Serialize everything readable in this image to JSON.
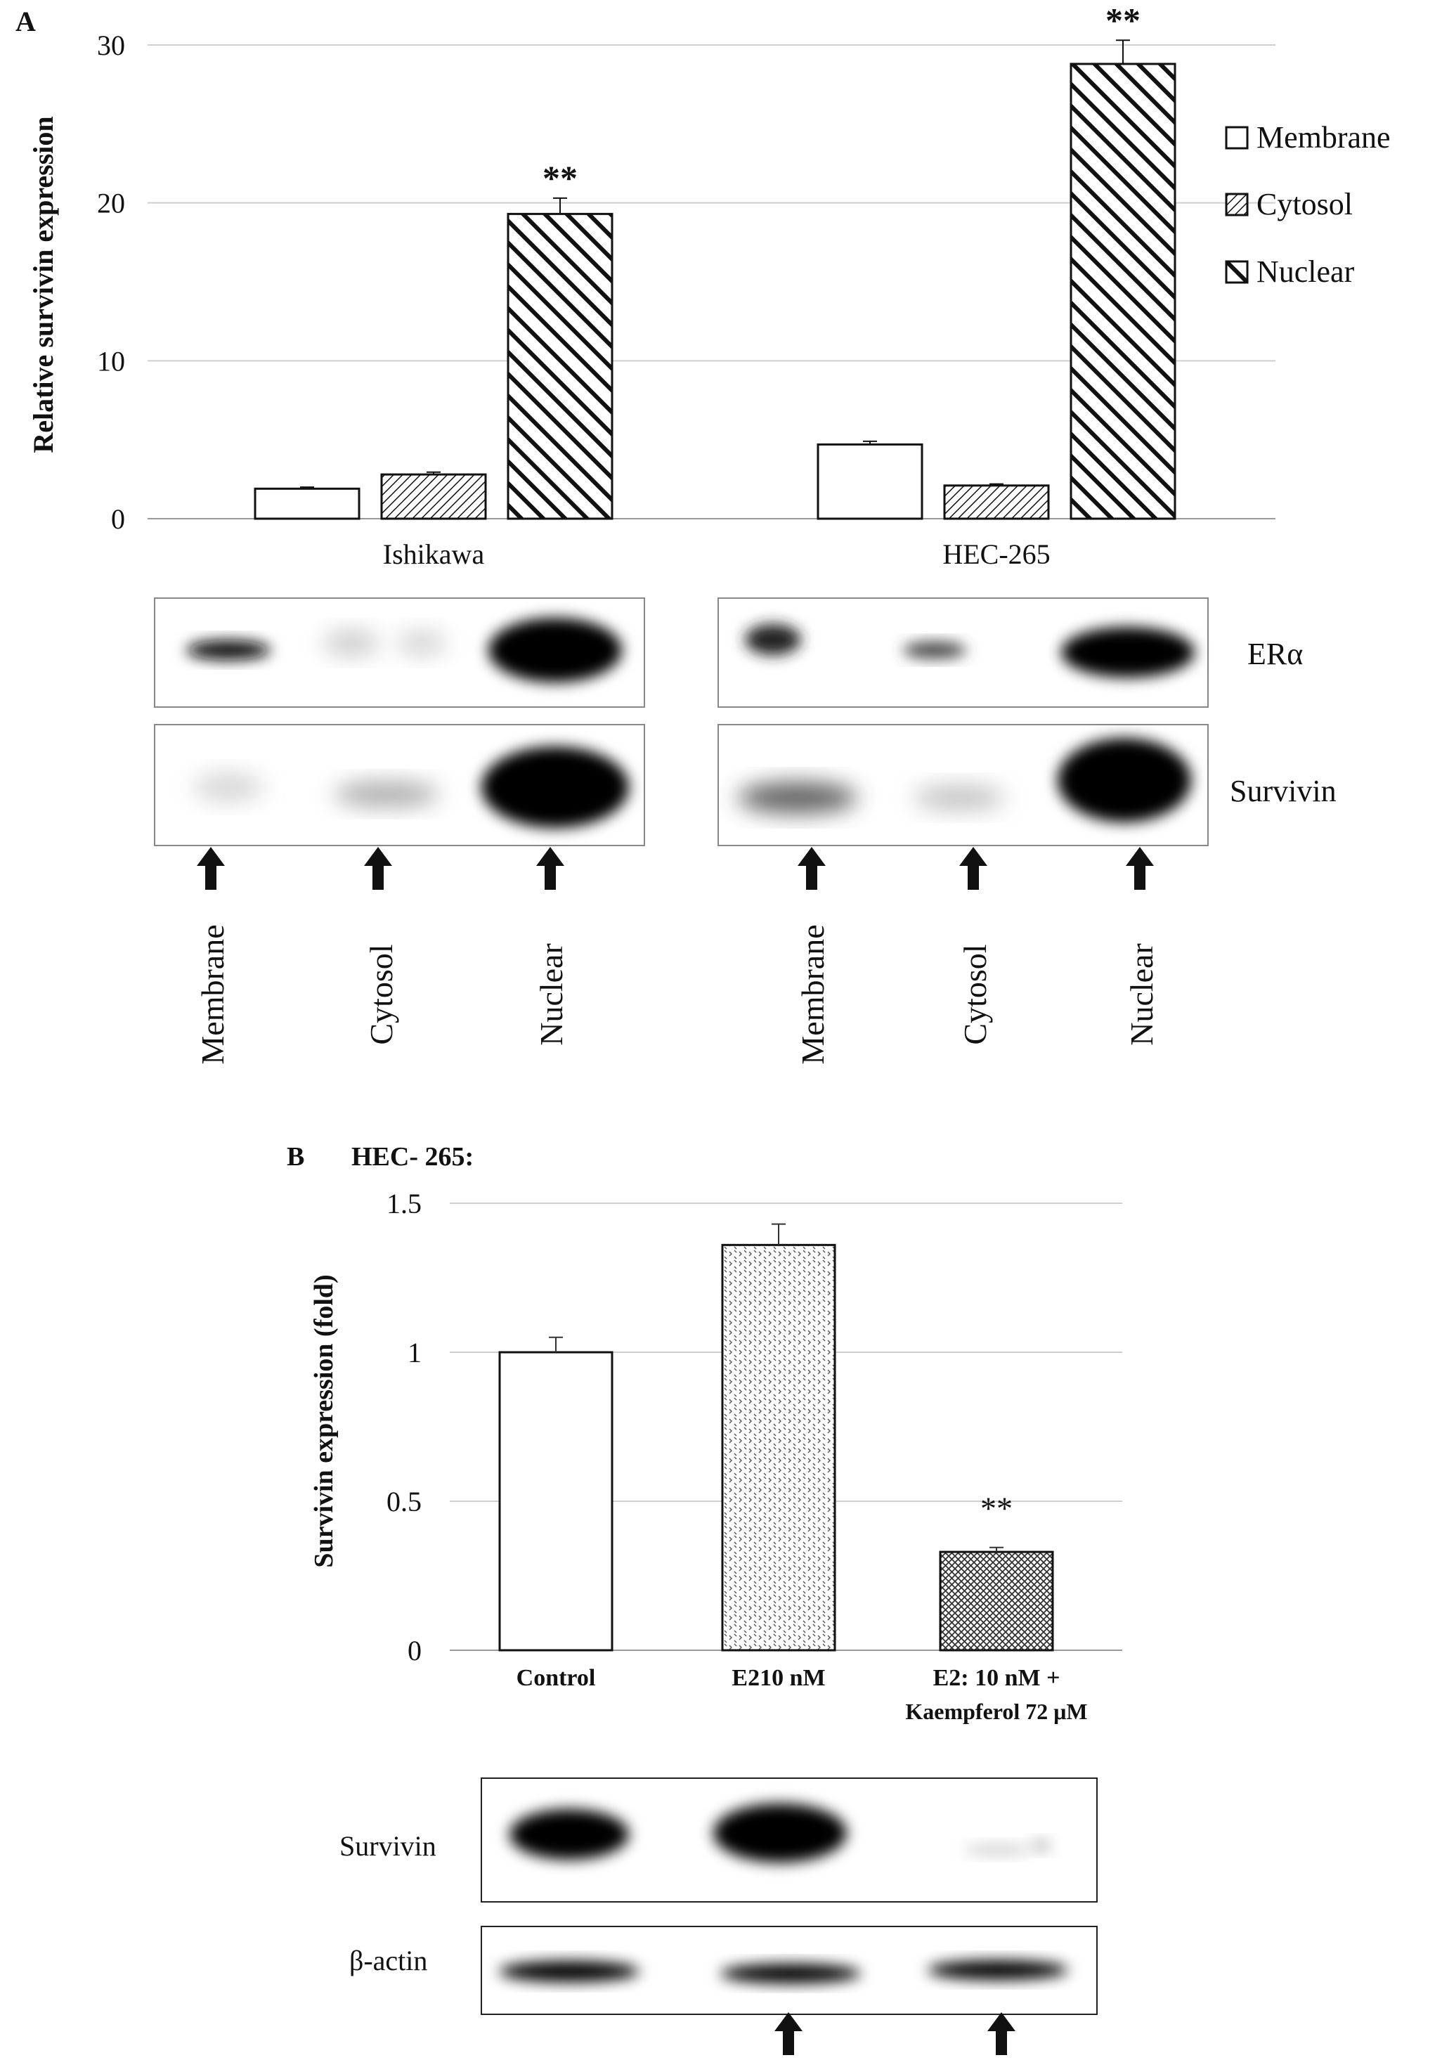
{
  "panel_a": {
    "label": "A",
    "ylabel": "Relative survivin expression",
    "legend": [
      "Membrane",
      "Cytosol",
      "Nuclear"
    ],
    "blot_labels": [
      "ERα",
      "Survivin"
    ],
    "lane_labels": [
      "Membrane",
      "Cytosol",
      "Nuclear"
    ]
  },
  "panel_b": {
    "label": "B",
    "cell_line": "HEC- 265:",
    "ylabel": "Survivin expression (fold)",
    "cat_line2": "Kaempferol 72 μM",
    "blot_labels": [
      "Survivin",
      "β-actin"
    ]
  },
  "chart_data": [
    {
      "type": "bar",
      "categories": [
        "Ishikawa",
        "HEC-265"
      ],
      "series": [
        {
          "name": "Membrane",
          "values": [
            1.9,
            4.7
          ],
          "errors": [
            0.1,
            0.2
          ]
        },
        {
          "name": "Cytosol",
          "values": [
            2.8,
            2.1
          ],
          "errors": [
            0.15,
            0.1
          ]
        },
        {
          "name": "Nuclear",
          "values": [
            19.3,
            28.8
          ],
          "errors": [
            1.0,
            1.5
          ]
        }
      ],
      "annotations": [
        {
          "category": "Ishikawa",
          "series": "Nuclear",
          "text": "**"
        },
        {
          "category": "HEC-265",
          "series": "Nuclear",
          "text": "**"
        }
      ],
      "title": "",
      "xlabel": "",
      "ylabel": "Relative survivin expression",
      "ylim": [
        0,
        30
      ],
      "yticks": [
        "0",
        "10",
        "20",
        "30"
      ],
      "grid": true,
      "legend": "right"
    },
    {
      "type": "bar",
      "categories": [
        "Control",
        "E210 nM",
        "E2: 10 nM +"
      ],
      "values": [
        1.0,
        1.36,
        0.33
      ],
      "errors": [
        0.05,
        0.07,
        0.015
      ],
      "annotations": [
        {
          "category": "E2: 10 nM +",
          "text": "**"
        }
      ],
      "title": "HEC- 265:",
      "xlabel": "",
      "ylabel": "Survivin expression (fold)",
      "ylim": [
        0,
        1.5
      ],
      "yticks": [
        "0",
        "0.5",
        "1",
        "1.5"
      ],
      "grid": true
    }
  ]
}
